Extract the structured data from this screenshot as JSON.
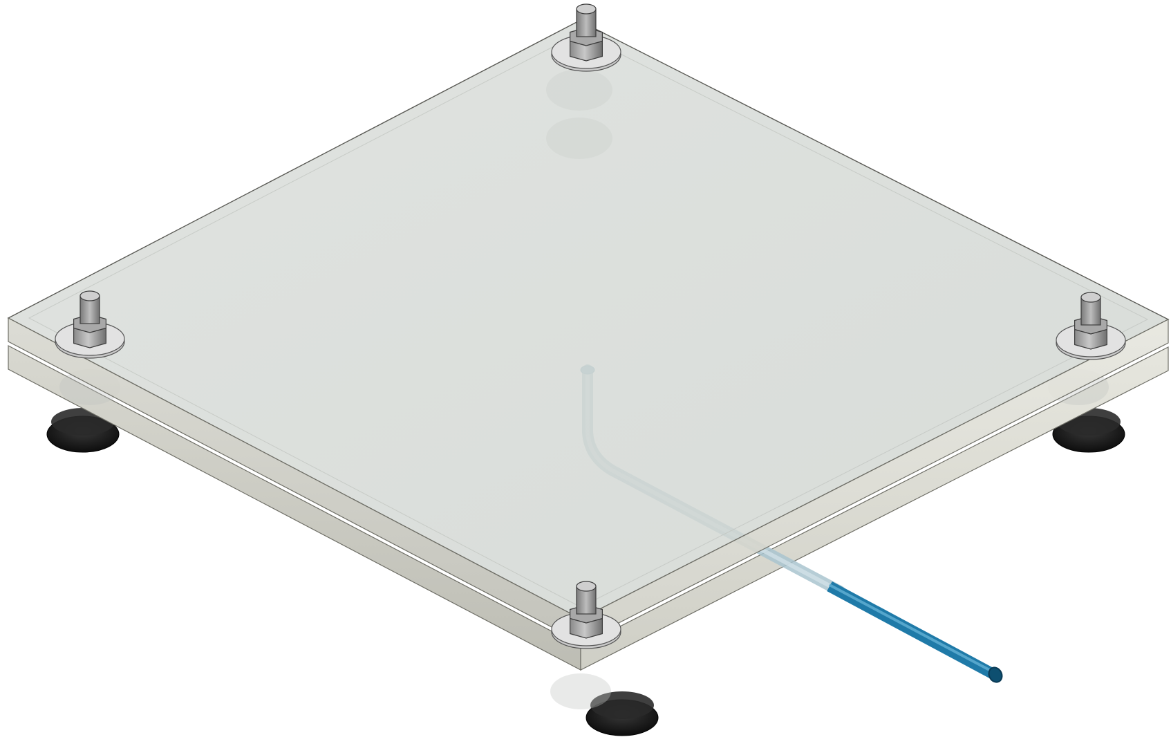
{
  "scene": {
    "subject": "glass-plate-assembly",
    "components": [
      {
        "name": "top-glass-plate",
        "kind": "plate"
      },
      {
        "name": "bottom-glass-plate",
        "kind": "plate"
      },
      {
        "name": "threaded-stud",
        "kind": "fastener",
        "count": 4
      },
      {
        "name": "hex-nut",
        "kind": "fastener",
        "count": 4
      },
      {
        "name": "washer",
        "kind": "fastener",
        "count": 4
      },
      {
        "name": "rubber-foot",
        "kind": "support",
        "count": 4
      },
      {
        "name": "tube",
        "kind": "tube"
      }
    ]
  },
  "colors": {
    "background": "#ffffff",
    "glass_top": "#d6dbd7",
    "glass_edge_front": "#c9cbc3",
    "glass_edge_side": "#deded6",
    "metal_light": "#d8d8d8",
    "metal_mid": "#9a9a9a",
    "metal_dark": "#555555",
    "foot": "#1a1a1a",
    "tube": "#1f7aa8",
    "tube_inside": "#8fb7c9"
  }
}
